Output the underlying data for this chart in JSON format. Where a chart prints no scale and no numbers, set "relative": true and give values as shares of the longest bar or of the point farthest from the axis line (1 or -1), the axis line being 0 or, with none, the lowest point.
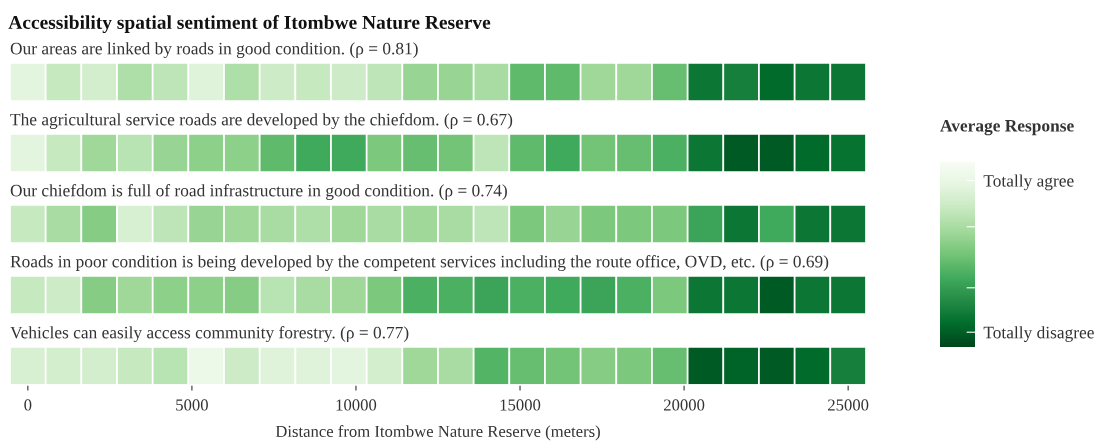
{
  "chart_data": {
    "type": "heatmap",
    "title": "Accessibility spatial sentiment of Itombwe Nature Reserve",
    "xlabel": "Distance from Itombwe Nature Reserve (meters)",
    "clabel": "Average Response",
    "relative": true,
    "cticks": [
      {
        "value": 0.1,
        "label": "Totally agree"
      },
      {
        "value": 0.35,
        "label": null
      },
      {
        "value": 0.68,
        "label": null
      },
      {
        "value": 0.92,
        "label": "Totally disagree"
      }
    ],
    "x": [
      0,
      1087,
      2174,
      3261,
      4348,
      5435,
      6522,
      7609,
      8696,
      9783,
      10870,
      11957,
      13043,
      14130,
      15217,
      16304,
      17391,
      18478,
      19565,
      20652,
      21739,
      22826,
      23913,
      25000
    ],
    "xlim": [
      -544,
      25544
    ],
    "xticks": [
      0,
      5000,
      10000,
      15000,
      20000,
      25000
    ],
    "y_categories": [
      "Our areas are linked by roads in good condition. (ρ = 0.81)",
      "The agricultural service roads are developed by the chiefdom. (ρ = 0.67)",
      "Our chiefdom is full of road infrastructure in good condition. (ρ = 0.74)",
      "Roads in poor condition is being developed by the competent services including the route office, OVD, etc. (ρ = 0.69)",
      "Vehicles can easily access community forestry. (ρ = 0.77)"
    ],
    "cells": [
      [
        0.13,
        0.25,
        0.2,
        0.33,
        0.28,
        0.15,
        0.33,
        0.23,
        0.25,
        0.23,
        0.28,
        0.4,
        0.4,
        0.35,
        0.55,
        0.55,
        0.38,
        0.38,
        0.53,
        0.83,
        0.8,
        0.88,
        0.83,
        0.83
      ],
      [
        0.13,
        0.25,
        0.38,
        0.3,
        0.4,
        0.43,
        0.43,
        0.55,
        0.63,
        0.63,
        0.48,
        0.53,
        0.5,
        0.28,
        0.55,
        0.63,
        0.5,
        0.53,
        0.6,
        0.83,
        0.93,
        0.93,
        0.88,
        0.85
      ],
      [
        0.25,
        0.35,
        0.45,
        0.18,
        0.28,
        0.4,
        0.38,
        0.35,
        0.33,
        0.38,
        0.35,
        0.38,
        0.35,
        0.28,
        0.48,
        0.4,
        0.48,
        0.48,
        0.48,
        0.65,
        0.83,
        0.63,
        0.83,
        0.83
      ],
      [
        0.25,
        0.23,
        0.45,
        0.38,
        0.43,
        0.43,
        0.45,
        0.3,
        0.35,
        0.38,
        0.48,
        0.6,
        0.6,
        0.65,
        0.6,
        0.63,
        0.65,
        0.6,
        0.48,
        0.83,
        0.83,
        0.93,
        0.83,
        0.83
      ],
      [
        0.18,
        0.2,
        0.2,
        0.25,
        0.3,
        0.08,
        0.23,
        0.15,
        0.15,
        0.13,
        0.2,
        0.38,
        0.35,
        0.58,
        0.53,
        0.5,
        0.45,
        0.48,
        0.53,
        0.93,
        0.9,
        0.93,
        0.88,
        0.8
      ]
    ]
  }
}
